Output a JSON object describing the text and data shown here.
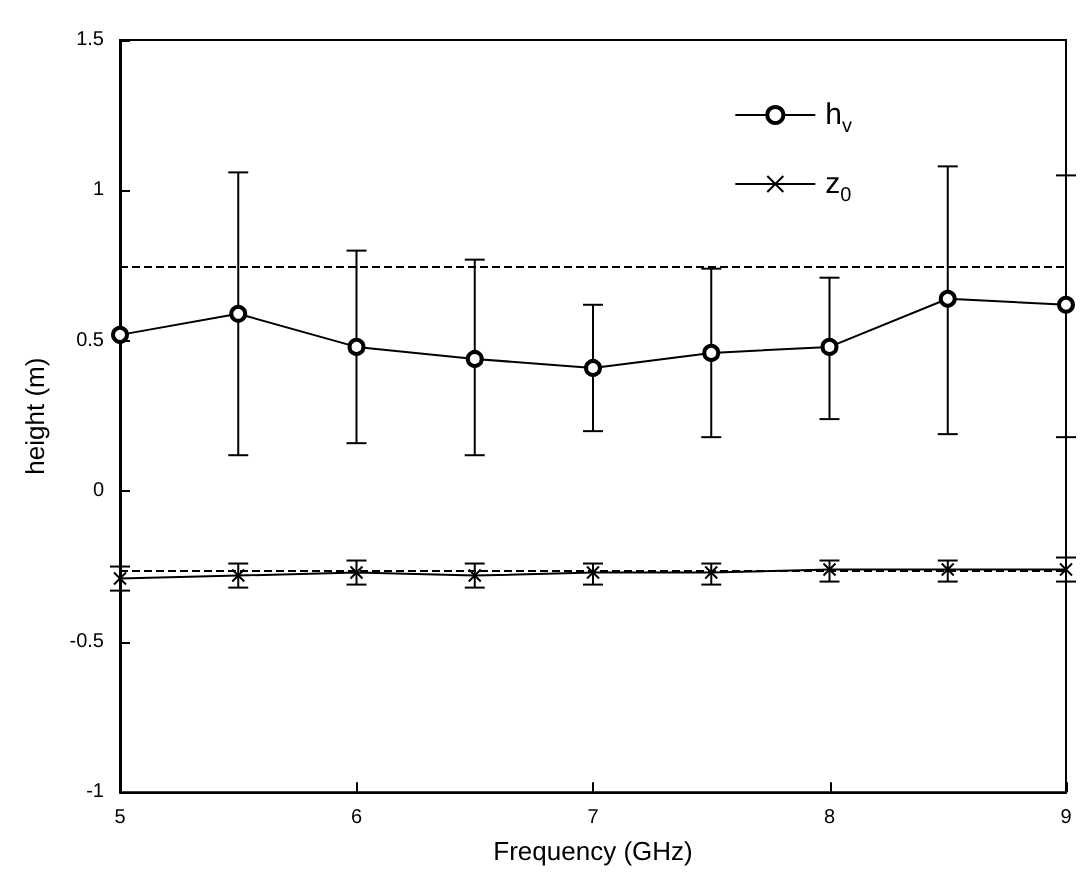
{
  "chart_data": {
    "type": "line",
    "xlabel": "Frequency (GHz)",
    "ylabel": "height (m)",
    "x": [
      5,
      5.5,
      6,
      6.5,
      7,
      7.5,
      8,
      8.5,
      9
    ],
    "series": [
      {
        "name": "h$_{v}$",
        "color": "#000000",
        "marker": "circle",
        "values": [
          0.52,
          0.59,
          0.48,
          0.44,
          0.41,
          0.46,
          0.48,
          0.64,
          0.62
        ],
        "errors": [
          null,
          [
            0.12,
            1.06
          ],
          [
            0.16,
            0.8
          ],
          [
            0.12,
            0.77
          ],
          [
            0.2,
            0.62
          ],
          [
            0.18,
            0.74
          ],
          [
            0.24,
            0.71
          ],
          [
            0.19,
            1.08
          ],
          [
            0.18,
            1.05
          ]
        ]
      },
      {
        "name": "z$_{0}$",
        "color": "#000000",
        "marker": "cross",
        "values": [
          -0.29,
          -0.28,
          -0.27,
          -0.28,
          -0.27,
          -0.27,
          -0.26,
          -0.26,
          -0.26
        ],
        "errors": [
          [
            -0.33,
            -0.25
          ],
          [
            -0.32,
            -0.24
          ],
          [
            -0.31,
            -0.23
          ],
          [
            -0.32,
            -0.24
          ],
          [
            -0.31,
            -0.24
          ],
          [
            -0.31,
            -0.24
          ],
          [
            -0.3,
            -0.23
          ],
          [
            -0.3,
            -0.23
          ],
          [
            -0.3,
            -0.22
          ]
        ]
      }
    ],
    "xlim": [
      5,
      9
    ],
    "xticks": [
      5,
      6,
      7,
      8,
      9
    ],
    "ylim": [
      -1,
      1.5
    ],
    "yticks": [
      -1,
      -0.5,
      0,
      0.5,
      1,
      1.5
    ],
    "ref_lines": [
      {
        "axis": "y",
        "value": 0.75,
        "line_style": "dashed"
      },
      {
        "axis": "y",
        "value": -0.26,
        "line_style": "dashed"
      }
    ],
    "legend": "top right",
    "grid": false,
    "line_style": "solid"
  }
}
